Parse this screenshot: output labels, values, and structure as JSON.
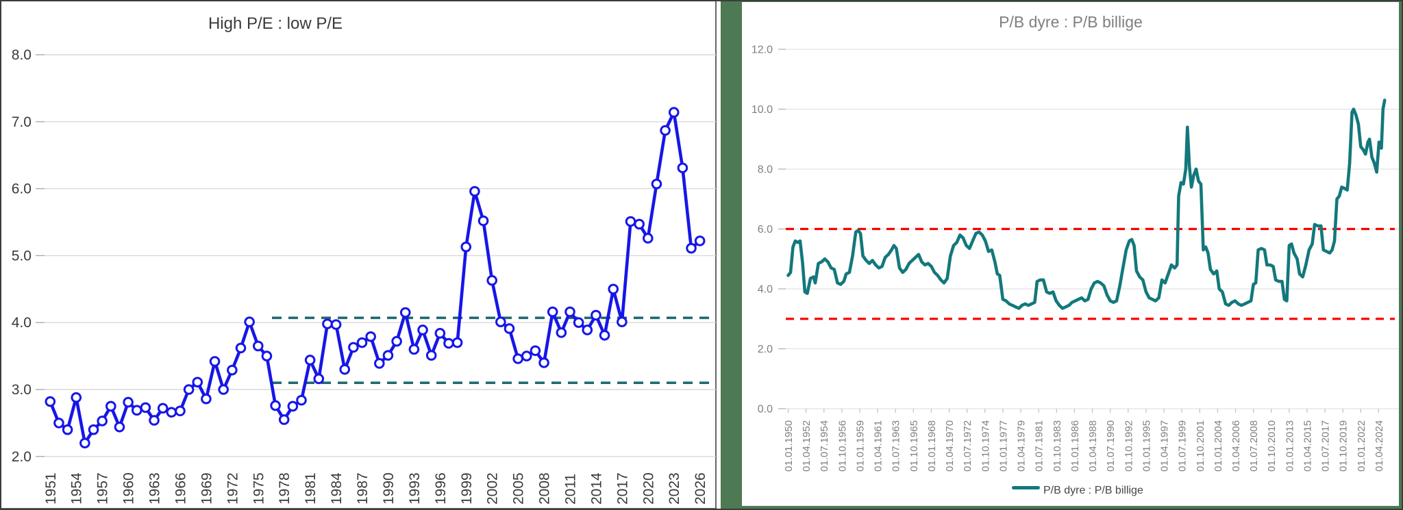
{
  "left_panel": {
    "title": "High P/E : low P/E"
  },
  "right_panel": {
    "title": "P/B dyre : P/B billige",
    "legend_label": "P/B dyre : P/B billige"
  },
  "colors": {
    "left_line": "#1616e8",
    "left_marker_fill": "#ffffff",
    "left_ref_dash": "#1f6a70",
    "right_line": "#13787c",
    "right_ref_dash": "#fe0000",
    "frame_green": "#4d7a53",
    "grid_left": "#d9d9d9",
    "grid_right": "#e2e2e2",
    "left_text": "#3a3a3a",
    "right_text": "#7f7f7f",
    "legend_text": "#454545",
    "outer_border": "#3c3c3c"
  },
  "chart_data": [
    {
      "type": "line",
      "title": "High P/E : low P/E",
      "xlabel": "",
      "ylabel": "",
      "ylim": [
        2.0,
        8.0
      ],
      "grid": true,
      "y_tick_values": [
        8,
        7,
        6,
        5,
        4,
        3,
        2
      ],
      "y_tick_labels": [
        "8.0",
        "7.0",
        "6.0",
        "5.0",
        "4.0",
        "3.0",
        "2.0"
      ],
      "x_tick_years": [
        1951,
        1954,
        1957,
        1960,
        1963,
        1966,
        1969,
        1972,
        1975,
        1978,
        1981,
        1984,
        1987,
        1990,
        1993,
        1996,
        1999,
        2002,
        2005,
        2008,
        2011,
        2014,
        2017,
        2020,
        2023,
        2026
      ],
      "x_start_year": 1951,
      "x_step_years": 1,
      "series": [
        {
          "name": "High P/E : low P/E",
          "marker": "open-circle",
          "values": [
            2.82,
            2.5,
            2.4,
            2.88,
            2.2,
            2.4,
            2.53,
            2.75,
            2.44,
            2.81,
            2.69,
            2.73,
            2.54,
            2.72,
            2.66,
            2.68,
            3.0,
            3.11,
            2.86,
            3.42,
            3.0,
            3.29,
            3.62,
            4.01,
            3.65,
            3.5,
            2.76,
            2.55,
            2.75,
            2.84,
            3.44,
            3.16,
            3.98,
            3.97,
            3.3,
            3.63,
            3.7,
            3.79,
            3.39,
            3.51,
            3.72,
            4.15,
            3.6,
            3.89,
            3.51,
            3.84,
            3.69,
            3.7,
            5.13,
            5.96,
            5.52,
            4.63,
            4.01,
            3.91,
            3.46,
            3.5,
            3.58,
            3.4,
            4.16,
            3.85,
            4.16,
            4.0,
            3.89,
            4.11,
            3.81,
            4.5,
            4.01,
            5.51,
            5.47,
            5.26,
            6.07,
            6.87,
            7.14,
            6.31,
            5.11,
            5.22
          ]
        }
      ],
      "ref_lines": [
        {
          "value": 4.07,
          "style": "dashed",
          "start_year": 1976.6
        },
        {
          "value": 3.1,
          "style": "dashed",
          "start_year": 1976.6
        }
      ]
    },
    {
      "type": "line",
      "title": "P/B dyre : P/B billige",
      "xlabel": "",
      "ylabel": "",
      "ylim": [
        0.0,
        12.0
      ],
      "grid": true,
      "legend_position": "bottom",
      "y_tick_values": [
        12,
        10,
        8,
        6,
        4,
        2,
        0
      ],
      "y_tick_labels": [
        "12.0",
        "10.0",
        "8.0",
        "6.0",
        "4.0",
        "2.0",
        "0.0"
      ],
      "x_tick_labels": [
        "01.01.1950",
        "01.04.1952",
        "01.07.1954",
        "01.10.1956",
        "01.01.1959",
        "01.04.1961",
        "01.07.1963",
        "01.10.1965",
        "01.01.1968",
        "01.04.1970",
        "01.07.1972",
        "01.10.1974",
        "01.01.1977",
        "01.04.1979",
        "01.07.1981",
        "01.10.1983",
        "01.01.1986",
        "01.04.1988",
        "01.07.1990",
        "01.10.1992",
        "01.01.1995",
        "01.04.1997",
        "01.07.1999",
        "01.10.2001",
        "01.01.2004",
        "01.04.2006",
        "01.07.2008",
        "01.10.2010",
        "01.01.2013",
        "01.04.2015",
        "01.07.2017",
        "01.10.2019",
        "01.01.2022",
        "01.04.2024"
      ],
      "series": [
        {
          "name": "P/B dyre : P/B billige",
          "marker": "none",
          "points": [
            [
              1950.0,
              4.45
            ],
            [
              1950.3,
              4.55
            ],
            [
              1950.6,
              5.4
            ],
            [
              1950.9,
              5.6
            ],
            [
              1951.2,
              5.55
            ],
            [
              1951.5,
              5.6
            ],
            [
              1951.8,
              4.9
            ],
            [
              1952.1,
              3.9
            ],
            [
              1952.4,
              3.85
            ],
            [
              1952.8,
              4.35
            ],
            [
              1953.2,
              4.4
            ],
            [
              1953.4,
              4.2
            ],
            [
              1953.8,
              4.85
            ],
            [
              1954.2,
              4.9
            ],
            [
              1954.6,
              5.0
            ],
            [
              1955.0,
              4.9
            ],
            [
              1955.4,
              4.7
            ],
            [
              1955.8,
              4.65
            ],
            [
              1956.2,
              4.2
            ],
            [
              1956.6,
              4.15
            ],
            [
              1957.0,
              4.25
            ],
            [
              1957.3,
              4.5
            ],
            [
              1957.7,
              4.55
            ],
            [
              1958.1,
              5.1
            ],
            [
              1958.5,
              5.9
            ],
            [
              1958.8,
              5.95
            ],
            [
              1959.1,
              5.85
            ],
            [
              1959.4,
              5.1
            ],
            [
              1959.8,
              4.95
            ],
            [
              1960.2,
              4.85
            ],
            [
              1960.6,
              4.95
            ],
            [
              1961.0,
              4.8
            ],
            [
              1961.4,
              4.7
            ],
            [
              1961.8,
              4.75
            ],
            [
              1962.2,
              5.05
            ],
            [
              1962.6,
              5.15
            ],
            [
              1963.0,
              5.3
            ],
            [
              1963.3,
              5.45
            ],
            [
              1963.6,
              5.35
            ],
            [
              1964.0,
              4.7
            ],
            [
              1964.4,
              4.55
            ],
            [
              1964.8,
              4.65
            ],
            [
              1965.2,
              4.85
            ],
            [
              1965.6,
              4.95
            ],
            [
              1966.0,
              5.05
            ],
            [
              1966.4,
              5.15
            ],
            [
              1966.8,
              4.9
            ],
            [
              1967.2,
              4.8
            ],
            [
              1967.6,
              4.85
            ],
            [
              1968.0,
              4.75
            ],
            [
              1968.4,
              4.55
            ],
            [
              1968.8,
              4.45
            ],
            [
              1969.2,
              4.3
            ],
            [
              1969.6,
              4.2
            ],
            [
              1970.0,
              4.35
            ],
            [
              1970.4,
              5.1
            ],
            [
              1970.8,
              5.45
            ],
            [
              1971.2,
              5.55
            ],
            [
              1971.6,
              5.8
            ],
            [
              1972.0,
              5.7
            ],
            [
              1972.4,
              5.45
            ],
            [
              1972.8,
              5.35
            ],
            [
              1973.2,
              5.6
            ],
            [
              1973.6,
              5.85
            ],
            [
              1974.0,
              5.9
            ],
            [
              1974.4,
              5.8
            ],
            [
              1974.8,
              5.6
            ],
            [
              1975.2,
              5.25
            ],
            [
              1975.6,
              5.3
            ],
            [
              1976.0,
              4.9
            ],
            [
              1976.3,
              4.5
            ],
            [
              1976.6,
              4.45
            ],
            [
              1977.0,
              3.65
            ],
            [
              1977.4,
              3.6
            ],
            [
              1977.8,
              3.5
            ],
            [
              1978.2,
              3.45
            ],
            [
              1978.6,
              3.4
            ],
            [
              1979.0,
              3.35
            ],
            [
              1979.4,
              3.45
            ],
            [
              1979.8,
              3.5
            ],
            [
              1980.2,
              3.45
            ],
            [
              1980.6,
              3.5
            ],
            [
              1981.0,
              3.55
            ],
            [
              1981.3,
              4.25
            ],
            [
              1981.7,
              4.3
            ],
            [
              1982.1,
              4.3
            ],
            [
              1982.5,
              3.9
            ],
            [
              1982.9,
              3.85
            ],
            [
              1983.3,
              3.9
            ],
            [
              1983.7,
              3.6
            ],
            [
              1984.1,
              3.45
            ],
            [
              1984.5,
              3.35
            ],
            [
              1984.9,
              3.4
            ],
            [
              1985.3,
              3.45
            ],
            [
              1985.7,
              3.55
            ],
            [
              1986.1,
              3.6
            ],
            [
              1986.5,
              3.65
            ],
            [
              1986.9,
              3.7
            ],
            [
              1987.3,
              3.6
            ],
            [
              1987.7,
              3.65
            ],
            [
              1988.1,
              4.0
            ],
            [
              1988.5,
              4.2
            ],
            [
              1988.9,
              4.25
            ],
            [
              1989.3,
              4.2
            ],
            [
              1989.7,
              4.1
            ],
            [
              1990.1,
              3.8
            ],
            [
              1990.5,
              3.6
            ],
            [
              1990.9,
              3.55
            ],
            [
              1991.3,
              3.6
            ],
            [
              1991.7,
              4.1
            ],
            [
              1992.1,
              4.7
            ],
            [
              1992.5,
              5.3
            ],
            [
              1992.9,
              5.6
            ],
            [
              1993.2,
              5.65
            ],
            [
              1993.5,
              5.45
            ],
            [
              1993.8,
              4.6
            ],
            [
              1994.2,
              4.4
            ],
            [
              1994.6,
              4.3
            ],
            [
              1995.0,
              3.9
            ],
            [
              1995.4,
              3.7
            ],
            [
              1995.8,
              3.65
            ],
            [
              1996.2,
              3.6
            ],
            [
              1996.6,
              3.7
            ],
            [
              1997.0,
              4.3
            ],
            [
              1997.4,
              4.2
            ],
            [
              1997.8,
              4.5
            ],
            [
              1998.2,
              4.8
            ],
            [
              1998.6,
              4.7
            ],
            [
              1998.9,
              4.8
            ],
            [
              1999.1,
              7.1
            ],
            [
              1999.4,
              7.55
            ],
            [
              1999.7,
              7.5
            ],
            [
              2000.0,
              8.0
            ],
            [
              2000.2,
              9.4
            ],
            [
              2000.45,
              8.1
            ],
            [
              2000.7,
              7.4
            ],
            [
              2001.0,
              7.8
            ],
            [
              2001.3,
              8.0
            ],
            [
              2001.6,
              7.6
            ],
            [
              2001.9,
              7.5
            ],
            [
              2002.2,
              5.3
            ],
            [
              2002.5,
              5.4
            ],
            [
              2002.8,
              5.2
            ],
            [
              2003.1,
              4.65
            ],
            [
              2003.5,
              4.5
            ],
            [
              2003.9,
              4.6
            ],
            [
              2004.2,
              4.0
            ],
            [
              2004.6,
              3.9
            ],
            [
              2005.0,
              3.5
            ],
            [
              2005.4,
              3.45
            ],
            [
              2005.8,
              3.55
            ],
            [
              2006.2,
              3.6
            ],
            [
              2006.6,
              3.5
            ],
            [
              2007.0,
              3.45
            ],
            [
              2007.4,
              3.5
            ],
            [
              2007.8,
              3.55
            ],
            [
              2008.2,
              3.6
            ],
            [
              2008.5,
              4.15
            ],
            [
              2008.8,
              4.2
            ],
            [
              2009.1,
              5.3
            ],
            [
              2009.5,
              5.35
            ],
            [
              2009.9,
              5.3
            ],
            [
              2010.2,
              4.8
            ],
            [
              2010.6,
              4.8
            ],
            [
              2011.0,
              4.75
            ],
            [
              2011.3,
              4.3
            ],
            [
              2011.7,
              4.25
            ],
            [
              2012.1,
              4.25
            ],
            [
              2012.4,
              3.65
            ],
            [
              2012.7,
              3.6
            ],
            [
              2013.0,
              5.45
            ],
            [
              2013.3,
              5.5
            ],
            [
              2013.6,
              5.2
            ],
            [
              2014.0,
              5.0
            ],
            [
              2014.3,
              4.5
            ],
            [
              2014.7,
              4.4
            ],
            [
              2015.1,
              4.8
            ],
            [
              2015.5,
              5.3
            ],
            [
              2015.9,
              5.5
            ],
            [
              2016.2,
              6.15
            ],
            [
              2016.6,
              6.1
            ],
            [
              2017.0,
              6.1
            ],
            [
              2017.3,
              5.3
            ],
            [
              2017.7,
              5.25
            ],
            [
              2018.1,
              5.2
            ],
            [
              2018.4,
              5.3
            ],
            [
              2018.7,
              5.6
            ],
            [
              2019.0,
              7.0
            ],
            [
              2019.3,
              7.1
            ],
            [
              2019.6,
              7.4
            ],
            [
              2020.0,
              7.35
            ],
            [
              2020.3,
              7.3
            ],
            [
              2020.6,
              8.2
            ],
            [
              2020.9,
              9.9
            ],
            [
              2021.1,
              10.0
            ],
            [
              2021.4,
              9.8
            ],
            [
              2021.7,
              9.5
            ],
            [
              2022.0,
              8.75
            ],
            [
              2022.3,
              8.65
            ],
            [
              2022.6,
              8.5
            ],
            [
              2022.9,
              8.9
            ],
            [
              2023.1,
              9.0
            ],
            [
              2023.4,
              8.4
            ],
            [
              2023.7,
              8.2
            ],
            [
              2024.0,
              7.9
            ],
            [
              2024.3,
              8.9
            ],
            [
              2024.6,
              8.7
            ],
            [
              2024.8,
              10.0
            ],
            [
              2025.0,
              10.3
            ]
          ]
        }
      ],
      "ref_lines": [
        {
          "value": 6.0,
          "style": "dashed"
        },
        {
          "value": 3.0,
          "style": "dashed"
        }
      ]
    }
  ]
}
